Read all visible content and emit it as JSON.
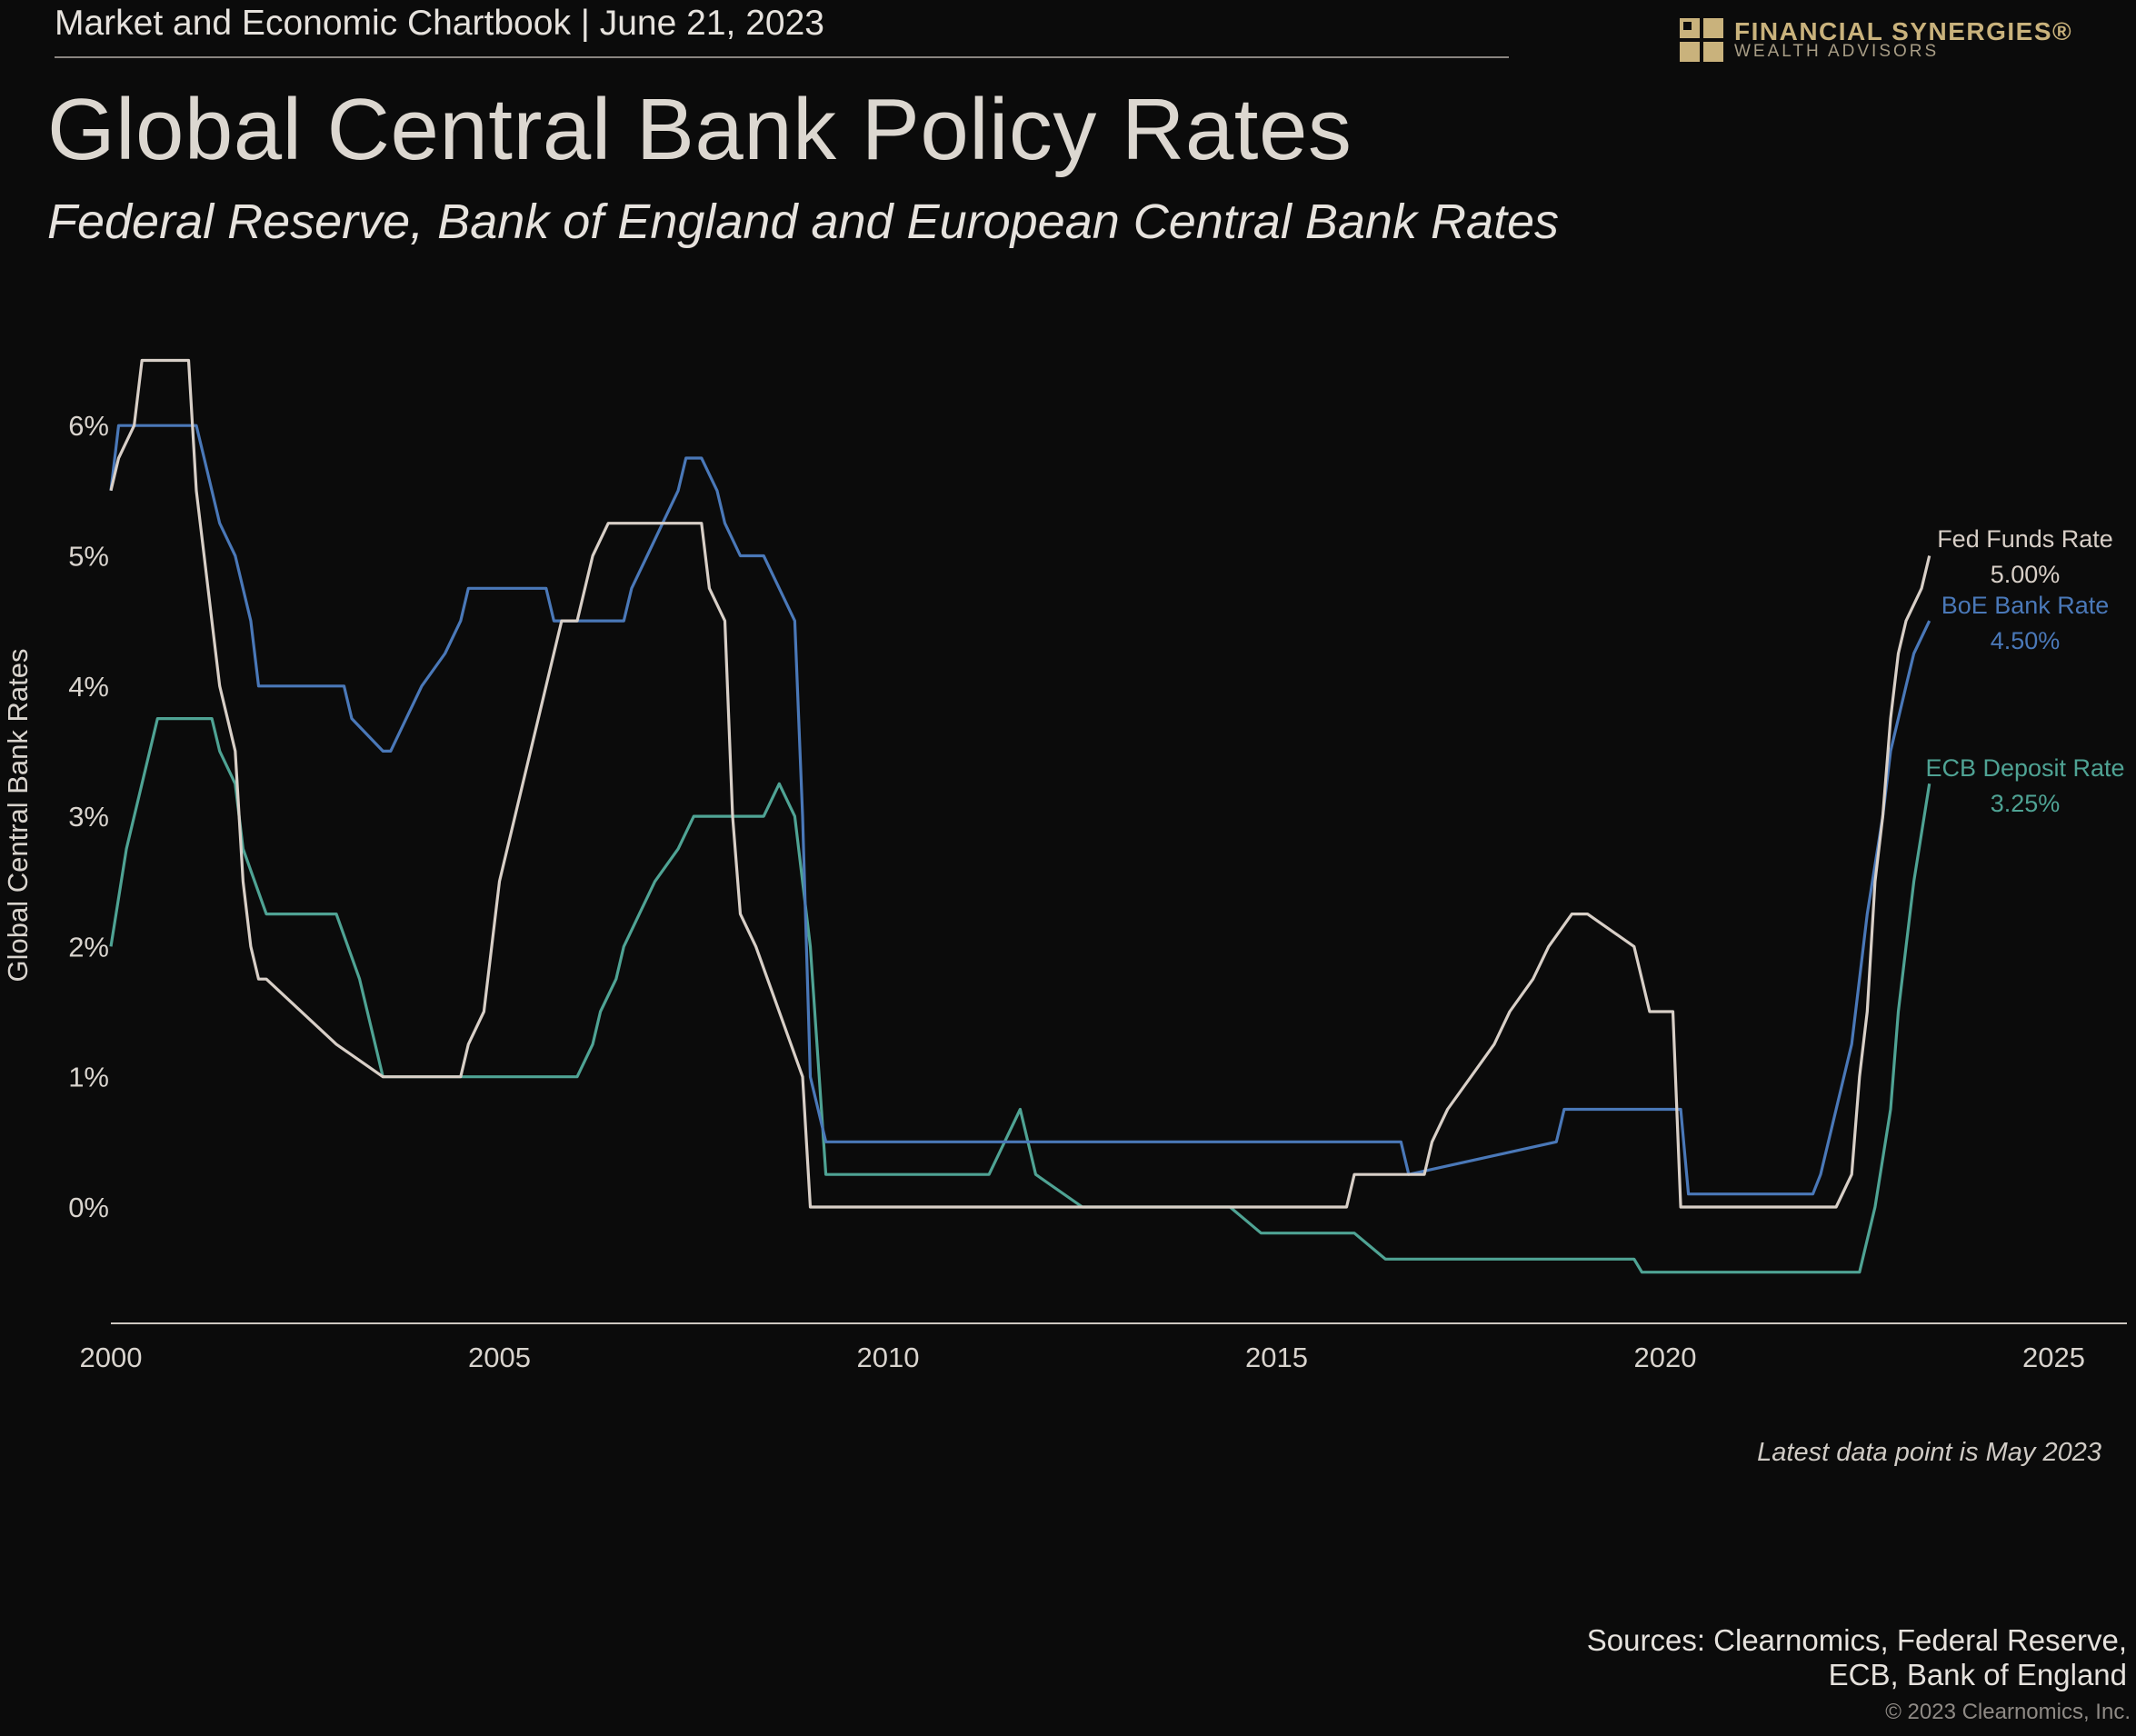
{
  "header": {
    "chartbook_line": "Market and Economic Chartbook | June 21, 2023",
    "title": "Global Central Bank Policy Rates",
    "subtitle": "Federal Reserve, Bank of England and European Central Bank Rates"
  },
  "logo": {
    "name": "FINANCIAL SYNERGIES®",
    "sub": "WEALTH ADVISORS",
    "color": "#c9b27c"
  },
  "footer": {
    "latest_note": "Latest data point is May 2023",
    "sources_line1": "Sources: Clearnomics, Federal Reserve,",
    "sources_line2": "ECB, Bank of England",
    "copyright": "© 2023 Clearnomics, Inc."
  },
  "colors": {
    "background": "#0b0b0b",
    "fed": "#d8cfc7",
    "boe": "#4a78b8",
    "ecb": "#4fa394",
    "axis": "#d9d4ce"
  },
  "chart_data": {
    "type": "line",
    "title": "Global Central Bank Policy Rates",
    "ylabel": "Global Central Bank Rates",
    "xlabel": "",
    "xlim": [
      2000,
      2026
    ],
    "ylim": [
      -0.9,
      6.8
    ],
    "x_ticks": [
      2000,
      2005,
      2010,
      2015,
      2020,
      2025
    ],
    "x_tick_labels": [
      "2000",
      "2005",
      "2010",
      "2015",
      "2020",
      "2025"
    ],
    "y_ticks": [
      0,
      1,
      2,
      3,
      4,
      5,
      6
    ],
    "y_tick_labels": [
      "0%",
      "1%",
      "2%",
      "3%",
      "4%",
      "5%",
      "6%"
    ],
    "series": [
      {
        "name": "Fed Funds Rate",
        "label": "Fed Funds Rate",
        "value_label": "5.00%",
        "color_key": "fed",
        "x": [
          2000.0,
          2000.1,
          2000.3,
          2000.4,
          2001.0,
          2001.1,
          2001.2,
          2001.3,
          2001.4,
          2001.5,
          2001.6,
          2001.7,
          2001.8,
          2001.9,
          2002.0,
          2002.9,
          2003.5,
          2004.5,
          2004.6,
          2004.8,
          2005.0,
          2005.2,
          2005.4,
          2005.6,
          2005.8,
          2006.0,
          2006.2,
          2006.4,
          2006.5,
          2007.6,
          2007.7,
          2007.9,
          2008.0,
          2008.1,
          2008.3,
          2008.9,
          2009.0,
          2015.9,
          2016.0,
          2016.9,
          2017.0,
          2017.2,
          2017.5,
          2017.8,
          2018.0,
          2018.3,
          2018.5,
          2018.8,
          2019.0,
          2019.6,
          2019.7,
          2019.8,
          2020.1,
          2020.2,
          2022.2,
          2022.4,
          2022.5,
          2022.6,
          2022.7,
          2022.8,
          2022.9,
          2023.0,
          2023.1,
          2023.3,
          2023.4
        ],
        "y": [
          5.5,
          5.75,
          6.0,
          6.5,
          6.5,
          5.5,
          5.0,
          4.5,
          4.0,
          3.75,
          3.5,
          2.5,
          2.0,
          1.75,
          1.75,
          1.25,
          1.0,
          1.0,
          1.25,
          1.5,
          2.5,
          3.0,
          3.5,
          4.0,
          4.5,
          4.5,
          5.0,
          5.25,
          5.25,
          5.25,
          4.75,
          4.5,
          3.0,
          2.25,
          2.0,
          1.0,
          0.0,
          0.0,
          0.25,
          0.25,
          0.5,
          0.75,
          1.0,
          1.25,
          1.5,
          1.75,
          2.0,
          2.25,
          2.25,
          2.0,
          1.75,
          1.5,
          1.5,
          0.0,
          0.0,
          0.25,
          1.0,
          1.5,
          2.5,
          3.0,
          3.75,
          4.25,
          4.5,
          4.75,
          5.0
        ]
      },
      {
        "name": "BoE Bank Rate",
        "label": "BoE Bank Rate",
        "value_label": "4.50%",
        "color_key": "boe",
        "x": [
          2000.0,
          2000.1,
          2000.2,
          2001.1,
          2001.2,
          2001.3,
          2001.4,
          2001.6,
          2001.8,
          2001.9,
          2002.0,
          2003.0,
          2003.1,
          2003.5,
          2003.6,
          2003.8,
          2004.0,
          2004.3,
          2004.5,
          2004.6,
          2004.7,
          2005.6,
          2005.7,
          2006.6,
          2006.7,
          2006.9,
          2007.1,
          2007.3,
          2007.4,
          2007.6,
          2007.8,
          2007.9,
          2008.1,
          2008.3,
          2008.4,
          2008.8,
          2008.9,
          2009.0,
          2009.2,
          2016.6,
          2016.7,
          2018.6,
          2018.7,
          2020.2,
          2020.3,
          2021.9,
          2022.0,
          2022.2,
          2022.4,
          2022.5,
          2022.6,
          2022.8,
          2022.9,
          2023.0,
          2023.1,
          2023.2,
          2023.4
        ],
        "y": [
          5.5,
          6.0,
          6.0,
          6.0,
          5.75,
          5.5,
          5.25,
          5.0,
          4.5,
          4.0,
          4.0,
          4.0,
          3.75,
          3.5,
          3.5,
          3.75,
          4.0,
          4.25,
          4.5,
          4.75,
          4.75,
          4.75,
          4.5,
          4.5,
          4.75,
          5.0,
          5.25,
          5.5,
          5.75,
          5.75,
          5.5,
          5.25,
          5.0,
          5.0,
          5.0,
          4.5,
          3.0,
          1.0,
          0.5,
          0.5,
          0.25,
          0.5,
          0.75,
          0.75,
          0.1,
          0.1,
          0.25,
          0.75,
          1.25,
          1.75,
          2.25,
          3.0,
          3.5,
          3.75,
          4.0,
          4.25,
          4.5
        ]
      },
      {
        "name": "ECB Deposit Rate",
        "label": "ECB Deposit Rate",
        "value_label": "3.25%",
        "color_key": "ecb",
        "x": [
          2000.0,
          2000.2,
          2000.4,
          2000.6,
          2000.8,
          2001.3,
          2001.4,
          2001.6,
          2001.7,
          2002.0,
          2002.9,
          2003.2,
          2003.5,
          2004.0,
          2006.0,
          2006.2,
          2006.3,
          2006.5,
          2006.6,
          2006.8,
          2007.0,
          2007.3,
          2007.5,
          2008.4,
          2008.6,
          2008.8,
          2009.0,
          2009.2,
          2011.3,
          2011.5,
          2011.7,
          2011.9,
          2012.5,
          2014.4,
          2014.6,
          2014.8,
          2015.0,
          2016.0,
          2016.2,
          2016.4,
          2019.6,
          2019.7,
          2019.8,
          2022.5,
          2022.7,
          2022.9,
          2023.0,
          2023.1,
          2023.2,
          2023.4
        ],
        "y": [
          2.0,
          2.75,
          3.25,
          3.75,
          3.75,
          3.75,
          3.5,
          3.25,
          2.75,
          2.25,
          2.25,
          1.75,
          1.0,
          1.0,
          1.0,
          1.25,
          1.5,
          1.75,
          2.0,
          2.25,
          2.5,
          2.75,
          3.0,
          3.0,
          3.25,
          3.0,
          2.0,
          0.25,
          0.25,
          0.5,
          0.75,
          0.25,
          0.0,
          0.0,
          -0.1,
          -0.2,
          -0.2,
          -0.2,
          -0.3,
          -0.4,
          -0.4,
          -0.5,
          -0.5,
          -0.5,
          0.0,
          0.75,
          1.5,
          2.0,
          2.5,
          3.25
        ]
      }
    ]
  }
}
